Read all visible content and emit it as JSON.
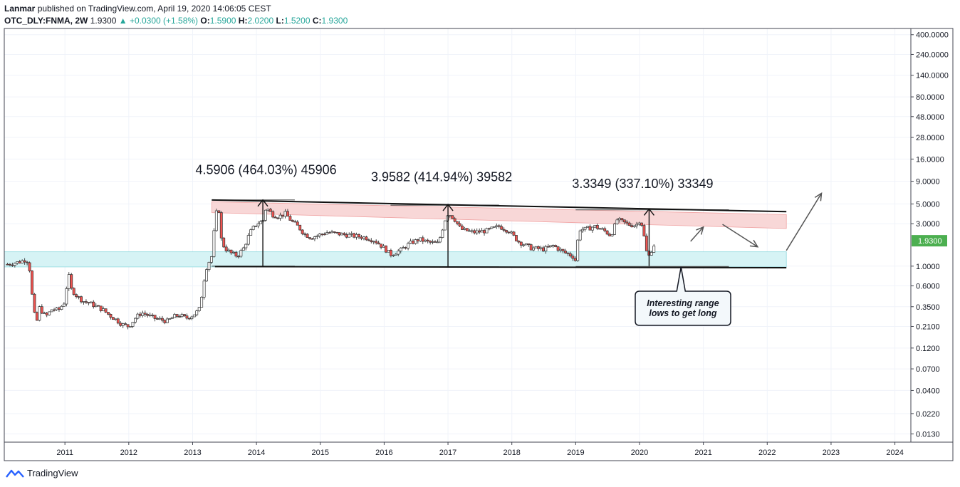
{
  "header": {
    "author": "Lanmar",
    "published_text": "published on TradingView.com, April 19, 2020 14:06:05 CEST",
    "symbol": "OTC_DLY:FNMA, 2W",
    "last": "1.9300",
    "change": "+0.0300 (+1.58%)",
    "open_label": "O:",
    "open": "1.5900",
    "high_label": "H:",
    "high": "2.0200",
    "low_label": "L:",
    "low": "1.5200",
    "close_label": "C:",
    "close": "1.9300"
  },
  "footer": {
    "brand": "TradingView"
  },
  "colors": {
    "up": "#26a69a",
    "down": "#ef5350",
    "grid": "#f0f3fa",
    "resistance_zone": "#f8d7d7",
    "support_zone": "#d6f3f5",
    "price_badge": "#4caf50"
  },
  "chart_data": {
    "type": "candlestick",
    "scale": "log",
    "price_axis_ticks": [
      "400.0000",
      "240.0000",
      "140.0000",
      "80.0000",
      "48.0000",
      "28.0000",
      "16.0000",
      "9.0000",
      "5.0000",
      "3.0000",
      "1.0000",
      "0.6000",
      "0.3500",
      "0.2100",
      "0.1200",
      "0.0700",
      "0.0400",
      "0.0220",
      "0.0130"
    ],
    "price_axis_ticks_num": [
      400,
      240,
      140,
      80,
      48,
      28,
      16,
      9,
      5,
      3,
      1,
      0.6,
      0.35,
      0.21,
      0.12,
      0.07,
      0.04,
      0.022,
      0.013
    ],
    "time_axis_ticks": [
      "2011",
      "2012",
      "2013",
      "2014",
      "2015",
      "2016",
      "2017",
      "2018",
      "2019",
      "2020",
      "2021",
      "2022",
      "2023",
      "2024"
    ],
    "ylim": [
      0.0105,
      470
    ],
    "xlim": [
      2010.05,
      2024.25
    ],
    "current_price": "1.9300",
    "current_price_num": 1.93,
    "price_path": [
      [
        2010.1,
        1.05
      ],
      [
        2010.3,
        1.12
      ],
      [
        2010.4,
        1.2
      ],
      [
        2010.45,
        0.9
      ],
      [
        2010.5,
        0.36
      ],
      [
        2010.55,
        0.22
      ],
      [
        2010.6,
        0.34
      ],
      [
        2010.7,
        0.27
      ],
      [
        2010.8,
        0.33
      ],
      [
        2010.9,
        0.32
      ],
      [
        2011.0,
        0.4
      ],
      [
        2011.05,
        0.85
      ],
      [
        2011.1,
        0.55
      ],
      [
        2011.2,
        0.45
      ],
      [
        2011.3,
        0.4
      ],
      [
        2011.4,
        0.38
      ],
      [
        2011.5,
        0.35
      ],
      [
        2011.6,
        0.32
      ],
      [
        2011.7,
        0.28
      ],
      [
        2011.8,
        0.25
      ],
      [
        2011.9,
        0.22
      ],
      [
        2012.0,
        0.21
      ],
      [
        2012.1,
        0.26
      ],
      [
        2012.2,
        0.3
      ],
      [
        2012.3,
        0.28
      ],
      [
        2012.4,
        0.26
      ],
      [
        2012.5,
        0.25
      ],
      [
        2012.6,
        0.24
      ],
      [
        2012.7,
        0.27
      ],
      [
        2012.8,
        0.28
      ],
      [
        2012.9,
        0.26
      ],
      [
        2013.0,
        0.28
      ],
      [
        2013.1,
        0.32
      ],
      [
        2013.15,
        0.5
      ],
      [
        2013.2,
        0.9
      ],
      [
        2013.25,
        1.1
      ],
      [
        2013.3,
        1.3
      ],
      [
        2013.35,
        3.2
      ],
      [
        2013.4,
        5.2
      ],
      [
        2013.45,
        2.0
      ],
      [
        2013.5,
        1.6
      ],
      [
        2013.6,
        1.4
      ],
      [
        2013.7,
        1.3
      ],
      [
        2013.8,
        1.6
      ],
      [
        2013.9,
        2.4
      ],
      [
        2014.0,
        3.0
      ],
      [
        2014.1,
        3.2
      ],
      [
        2014.15,
        4.6
      ],
      [
        2014.25,
        3.8
      ],
      [
        2014.35,
        3.6
      ],
      [
        2014.45,
        3.9
      ],
      [
        2014.55,
        3.2
      ],
      [
        2014.65,
        2.8
      ],
      [
        2014.75,
        2.3
      ],
      [
        2014.85,
        2.1
      ],
      [
        2014.95,
        2.2
      ],
      [
        2015.1,
        2.4
      ],
      [
        2015.3,
        2.3
      ],
      [
        2015.5,
        2.2
      ],
      [
        2015.7,
        2.1
      ],
      [
        2015.85,
        1.95
      ],
      [
        2016.0,
        1.6
      ],
      [
        2016.1,
        1.35
      ],
      [
        2016.25,
        1.5
      ],
      [
        2016.4,
        1.8
      ],
      [
        2016.55,
        2.0
      ],
      [
        2016.7,
        1.85
      ],
      [
        2016.85,
        1.8
      ],
      [
        2016.95,
        3.3
      ],
      [
        2017.0,
        3.96
      ],
      [
        2017.1,
        3.4
      ],
      [
        2017.2,
        2.6
      ],
      [
        2017.4,
        2.4
      ],
      [
        2017.6,
        2.5
      ],
      [
        2017.8,
        2.8
      ],
      [
        2017.95,
        2.5
      ],
      [
        2018.1,
        1.9
      ],
      [
        2018.3,
        1.6
      ],
      [
        2018.5,
        1.55
      ],
      [
        2018.65,
        1.7
      ],
      [
        2018.8,
        1.45
      ],
      [
        2018.95,
        1.3
      ],
      [
        2019.0,
        1.15
      ],
      [
        2019.05,
        2.6
      ],
      [
        2019.15,
        2.6
      ],
      [
        2019.3,
        2.8
      ],
      [
        2019.45,
        2.5
      ],
      [
        2019.55,
        2.2
      ],
      [
        2019.65,
        3.35
      ],
      [
        2019.75,
        3.1
      ],
      [
        2019.85,
        2.9
      ],
      [
        2019.95,
        2.9
      ],
      [
        2020.0,
        3.3
      ],
      [
        2020.05,
        2.8
      ],
      [
        2020.1,
        1.5
      ],
      [
        2020.15,
        1.3
      ],
      [
        2020.2,
        1.6
      ],
      [
        2020.26,
        1.93
      ]
    ],
    "resistance_zone": {
      "start": [
        2013.3,
        5.3
      ],
      "end": [
        2022.3,
        3.8
      ],
      "lower_start": [
        2013.3,
        4.0
      ],
      "lower_end": [
        2022.3,
        2.65
      ]
    },
    "support_zone": {
      "x_from": 2010.05,
      "x_to": 2022.3,
      "low": 0.98,
      "high": 1.45
    },
    "trend_top": {
      "start": [
        2013.3,
        5.55
      ],
      "end": [
        2022.3,
        4.1
      ]
    },
    "trend_bottom": {
      "start": [
        2013.35,
        0.99
      ],
      "end": [
        2022.3,
        0.96
      ]
    },
    "range_levels": [
      {
        "x_from": 2013.3,
        "x_to": 2014.6,
        "y": 5.55
      },
      {
        "x_from": 2016.1,
        "x_to": 2017.8,
        "y": 4.85
      },
      {
        "x_from": 2019.0,
        "x_to": 2021.4,
        "y": 4.3
      },
      {
        "x_from": 2013.3,
        "x_to": 2014.6,
        "y": 1.0
      },
      {
        "x_from": 2016.1,
        "x_to": 2017.8,
        "y": 0.98
      },
      {
        "x_from": 2019.0,
        "x_to": 2021.4,
        "y": 0.99
      }
    ],
    "measurements": [
      {
        "x": 2014.1,
        "y_low": 1.0,
        "y_high": 5.55,
        "label": "4.5906 (464.03%) 45906",
        "label_x": 2014.15,
        "label_y": 10.8
      },
      {
        "x": 2017.0,
        "y_low": 0.99,
        "y_high": 4.95,
        "label": "3.9582 (414.94%) 39582",
        "label_x": 2016.9,
        "label_y": 9.0
      },
      {
        "x": 2020.15,
        "y_low": 1.0,
        "y_high": 4.4,
        "label": "3.3349 (337.10%) 33349",
        "label_x": 2020.05,
        "label_y": 7.6
      }
    ],
    "arrows": [
      {
        "from": [
          2020.8,
          1.9
        ],
        "to": [
          2021.0,
          2.75
        ]
      },
      {
        "from": [
          2021.3,
          2.95
        ],
        "to": [
          2021.85,
          1.65
        ]
      },
      {
        "from": [
          2022.3,
          1.5
        ],
        "to": [
          2022.85,
          6.6
        ]
      }
    ],
    "callout": {
      "text_line1": "Interesting range",
      "text_line2": "lows to get long",
      "pointer": [
        2020.65,
        0.98
      ]
    }
  }
}
